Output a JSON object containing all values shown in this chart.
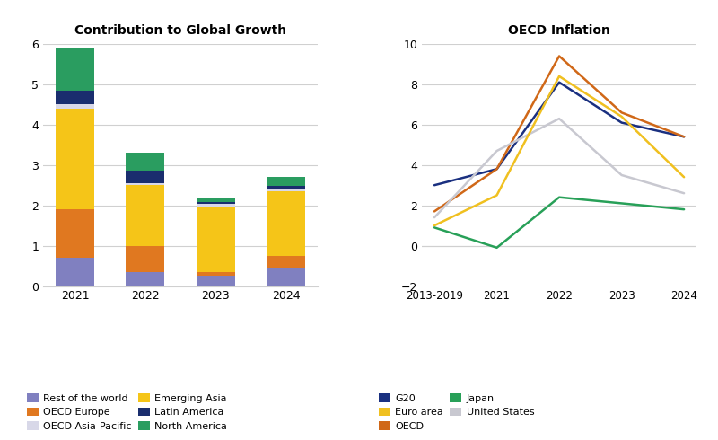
{
  "bar_title": "Contribution to Global Growth",
  "bar_years": [
    "2021",
    "2022",
    "2023",
    "2024"
  ],
  "bar_data": {
    "Rest of the world": [
      0.7,
      0.35,
      0.25,
      0.43
    ],
    "OECD Europe": [
      1.2,
      0.65,
      0.1,
      0.32
    ],
    "Emerging Asia": [
      2.5,
      1.5,
      1.6,
      1.6
    ],
    "OECD Asia-Pacific": [
      0.1,
      0.05,
      0.08,
      0.04
    ],
    "Latin America": [
      0.35,
      0.3,
      0.05,
      0.1
    ],
    "North America": [
      1.05,
      0.45,
      0.12,
      0.22
    ]
  },
  "bar_colors": {
    "Rest of the world": "#8080c0",
    "OECD Asia-Pacific": "#d8d8e8",
    "Latin America": "#1a2e6e",
    "OECD Europe": "#e07820",
    "Emerging Asia": "#f5c518",
    "North America": "#2a9d60"
  },
  "bar_stack_order": [
    "Rest of the world",
    "OECD Europe",
    "Emerging Asia",
    "OECD Asia-Pacific",
    "Latin America",
    "North America"
  ],
  "bar_ylim": [
    0,
    6
  ],
  "bar_yticks": [
    0,
    1,
    2,
    3,
    4,
    5,
    6
  ],
  "line_title": "OECD Inflation",
  "line_x": [
    "2013-2019",
    "2021",
    "2022",
    "2023",
    "2024"
  ],
  "line_data": {
    "G20": [
      3.0,
      3.8,
      8.1,
      6.1,
      5.4
    ],
    "OECD": [
      1.7,
      3.8,
      9.4,
      6.6,
      5.4
    ],
    "United States": [
      1.4,
      4.7,
      6.3,
      3.5,
      2.6
    ],
    "Euro area": [
      1.0,
      2.5,
      8.4,
      6.4,
      3.4
    ],
    "Japan": [
      0.9,
      -0.1,
      2.4,
      2.1,
      1.8
    ]
  },
  "line_colors": {
    "G20": "#1a3080",
    "OECD": "#d06818",
    "United States": "#c8c8d0",
    "Euro area": "#f0c020",
    "Japan": "#28a058"
  },
  "line_ylim": [
    -2,
    10
  ],
  "line_yticks": [
    -2,
    0,
    2,
    4,
    6,
    8,
    10
  ],
  "legend_bar": [
    [
      "Rest of the world",
      "#8080c0"
    ],
    [
      "OECD Europe",
      "#e07820"
    ],
    [
      "OECD Asia-Pacific",
      "#d8d8e8"
    ],
    [
      "Emerging Asia",
      "#f5c518"
    ],
    [
      "Latin America",
      "#1a2e6e"
    ],
    [
      "North America",
      "#2a9d60"
    ]
  ],
  "legend_line": [
    [
      "G20",
      "#1a3080"
    ],
    [
      "Euro area",
      "#f0c020"
    ],
    [
      "OECD",
      "#d06818"
    ],
    [
      "Japan",
      "#28a058"
    ],
    [
      "United States",
      "#c8c8d0"
    ]
  ],
  "background_color": "#ffffff",
  "grid_color": "#d0d0d0"
}
